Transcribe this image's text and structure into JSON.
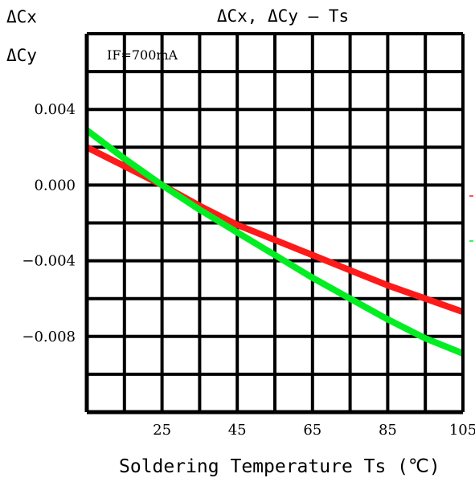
{
  "chart_data": {
    "type": "line",
    "title": "ΔCx,  ΔCy – Ts",
    "ylabel_top": "ΔCx",
    "ylabel_bottom": "ΔCy",
    "xlabel": "Soldering Temperature Ts (℃)",
    "annotation": "IF=700mA",
    "x_ticks": [
      25,
      45,
      65,
      85,
      105
    ],
    "y_ticks": [
      0.004,
      0.0,
      -0.004,
      -0.008
    ],
    "y_tick_labels": [
      "0.004",
      "0.000",
      "−0.004",
      "−0.008"
    ],
    "xlim": [
      5,
      105
    ],
    "ylim": [
      -0.012,
      0.008
    ],
    "grid": true,
    "series": [
      {
        "color": "#ff1a1a",
        "x": [
          5,
          15,
          25,
          35,
          45,
          55,
          65,
          75,
          85,
          95,
          105
        ],
        "y": [
          0.002,
          0.001,
          0.0,
          -0.0011,
          -0.0021,
          -0.0029,
          -0.0037,
          -0.0045,
          -0.0053,
          -0.006,
          -0.0067
        ]
      },
      {
        "color": "#00ee22",
        "x": [
          5,
          15,
          25,
          35,
          45,
          55,
          65,
          75,
          85,
          95,
          105
        ],
        "y": [
          0.0029,
          0.0014,
          0.0,
          -0.0013,
          -0.0025,
          -0.0037,
          -0.0049,
          -0.006,
          -0.0071,
          -0.0081,
          -0.0089
        ]
      }
    ]
  }
}
